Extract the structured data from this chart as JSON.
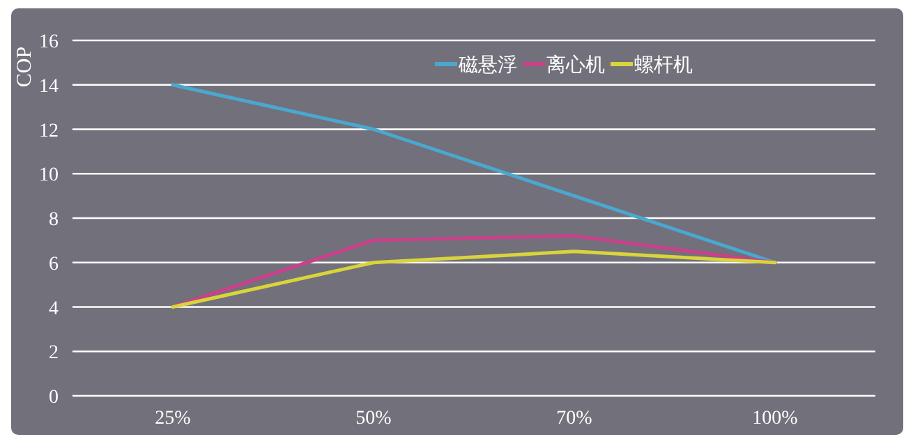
{
  "chart_data": {
    "type": "line",
    "ylabel": "COP",
    "categories": [
      "25%",
      "50%",
      "70%",
      "100%"
    ],
    "series": [
      {
        "name": "磁悬浮",
        "color": "#4aa8d0",
        "values": [
          14,
          12,
          9,
          6
        ]
      },
      {
        "name": "离心机",
        "color": "#c9418a",
        "values": [
          4,
          7,
          7.2,
          6
        ]
      },
      {
        "name": "螺杆机",
        "color": "#d8d43c",
        "values": [
          4,
          6,
          6.5,
          6
        ]
      }
    ],
    "ylim": [
      0,
      16
    ],
    "yticks": [
      0,
      2,
      4,
      6,
      8,
      10,
      12,
      14,
      16
    ],
    "grid": "y",
    "legend": "top",
    "marker": "none",
    "line_style": "solid"
  }
}
